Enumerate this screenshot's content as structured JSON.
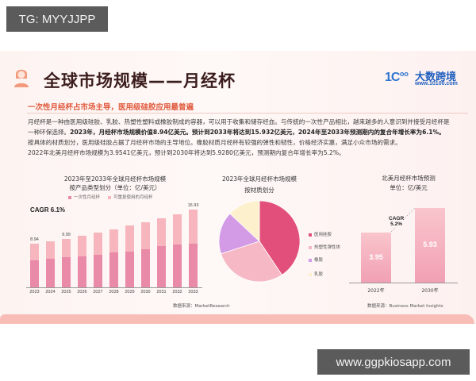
{
  "watermarks": {
    "top": "TG: MYYJJPP",
    "bottom": "www.ggpkiosapp.com"
  },
  "header": {
    "title": "全球市场规模——月经杯",
    "icon": "person-icon",
    "logo": {
      "mark": "1C°°",
      "name": "大数跨境",
      "url": "www.10100.com"
    }
  },
  "intro": {
    "subtitle": "一次性月经杯占市场主导，医用级硅胶应用最普遍",
    "lines": [
      {
        "plain": "月经杯是一种由医用级硅胶、乳胶、热塑性塑料或橡胶制成的容器，可以用于收集和储存经血。与传统的一次性产品相比，越来越多的人意识到并接受月经杯是"
      },
      {
        "plain": "一种环保选择。",
        "bold": "2023年，月经杯市场规模价值8.94亿美元。预计到2033年将达到15.932亿美元，2024年至2033年预测期内的复合年增长率为6.1%。"
      },
      {
        "plain": "按具体的材质划分，医用级硅胶占据了月经杯市场的主导地位。橡胶材质月经杯有较强的弹性和韧性，价格经济实惠，满足小众市场的需求。"
      },
      {
        "plain": "2022年北美月经杯市场规模为3.9541亿美元，预计到2030年将达到5.9280亿美元，预测期内复合年增长率为5.2%。"
      }
    ]
  },
  "colors": {
    "disposable": "#e98aa9",
    "reusable": "#f7b6bd",
    "medical_silicone": "#e24f7a",
    "tpe": "#f6b8c4",
    "rubber": "#d39be6",
    "latex": "#fdf0cc",
    "accent": "#e05a3d"
  },
  "chart_data": [
    {
      "type": "bar",
      "stacked": true,
      "title": "2023年至2033年全球月经杯市场规模 按产品类型划分（单位：亿/美元）",
      "title_lines": [
        "2023年至2033年全球月经杯市场规模",
        "按产品类型划分（单位：亿/美元）"
      ],
      "categories": [
        "2023",
        "2024",
        "2025",
        "2026",
        "2027",
        "2028",
        "2029",
        "2030",
        "2031",
        "2032",
        "2033"
      ],
      "series": [
        {
          "name": "一次性月经杯",
          "values": [
            5.6,
            5.9,
            6.2,
            6.4,
            6.7,
            7.1,
            7.3,
            7.8,
            8.4,
            8.8,
            8.9
          ]
        },
        {
          "name": "可重复使用的月经杯",
          "values": [
            3.34,
            3.55,
            3.79,
            4.2,
            4.5,
            4.8,
            5.3,
            5.6,
            5.8,
            6.2,
            7.03
          ]
        }
      ],
      "totals": [
        8.94,
        9.45,
        9.99,
        10.6,
        11.2,
        11.9,
        12.6,
        13.4,
        14.2,
        15.0,
        15.93
      ],
      "data_labels": {
        "2023": "8.94",
        "2025": "9.99",
        "2033": "15.93"
      },
      "annotation": "CAGR 6.1%",
      "source": "数据来源：MarketResearch",
      "xlabel": "",
      "ylabel": "",
      "ylim": [
        0,
        16
      ],
      "grid": false,
      "legend_position": "top"
    },
    {
      "type": "pie",
      "title": "2023年全球月经杯市场规模 按材质划分",
      "title_lines": [
        "2023年全球月经杯市场规模",
        "按材质划分"
      ],
      "labels": [
        "医用硅胶",
        "热塑性弹性体",
        "橡胶",
        "乳胶"
      ],
      "values": [
        40.6,
        29.4,
        17.0,
        13.0
      ],
      "legend_position": "right"
    },
    {
      "type": "bar",
      "title": "北美月经杯市场预测 单位：亿/美元",
      "title_lines": [
        "北美月经杯市场预测",
        "单位：亿/美元"
      ],
      "categories": [
        "2022年",
        "2030年"
      ],
      "values": [
        3.95,
        5.93
      ],
      "data_labels": [
        "3.95",
        "5.93"
      ],
      "annotation": "CAGR 5.2%",
      "annotation_lines": [
        "CAGR",
        "5.2%"
      ],
      "source": "数据来源：Business Market Insights",
      "ylim": [
        0,
        7
      ],
      "grid": false
    }
  ]
}
